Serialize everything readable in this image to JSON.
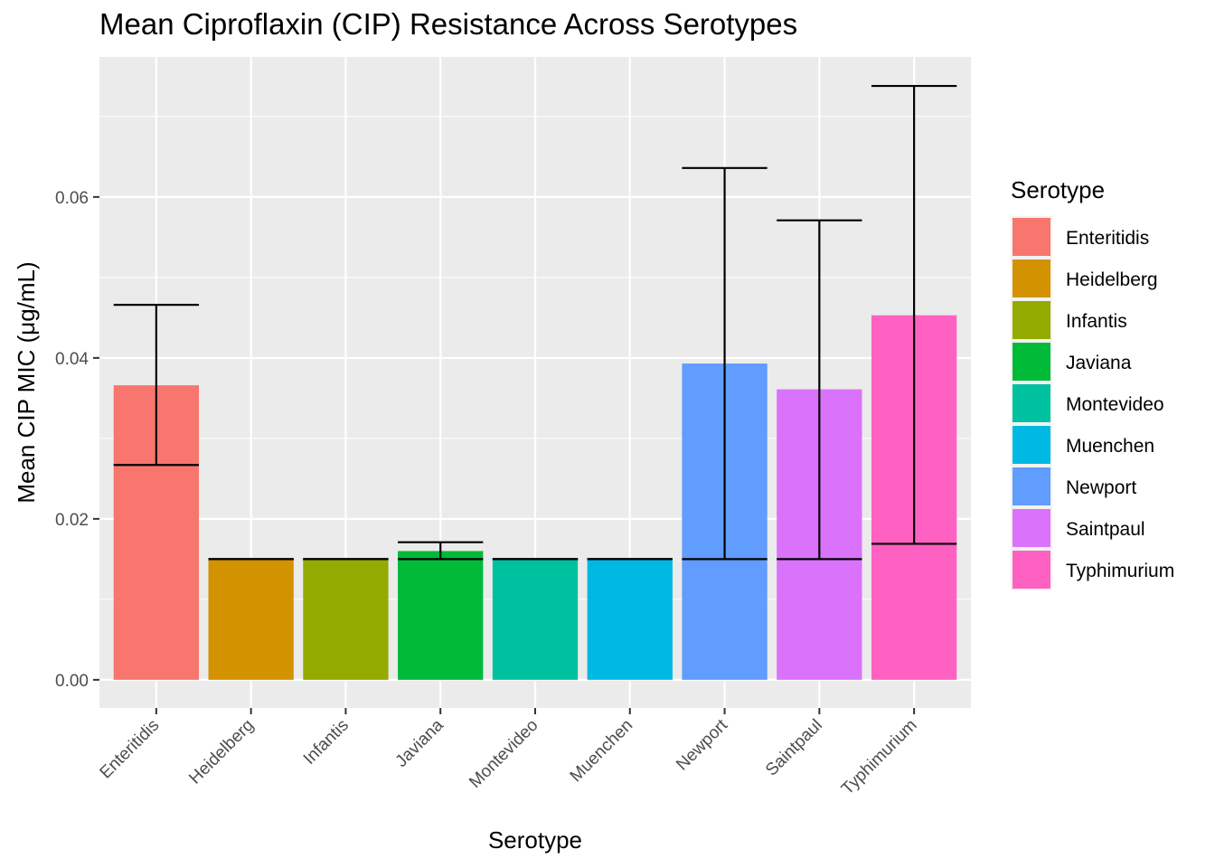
{
  "chart_data": {
    "type": "bar",
    "title": "Mean Ciproflaxin (CIP) Resistance Across Serotypes",
    "xlabel": "Serotype",
    "ylabel": "Mean CIP MIC (μg/mL)",
    "categories": [
      "Enteritidis",
      "Heidelberg",
      "Infantis",
      "Javiana",
      "Montevideo",
      "Muenchen",
      "Newport",
      "Saintpaul",
      "Typhimurium"
    ],
    "values": [
      0.0366,
      0.015,
      0.015,
      0.016,
      0.015,
      0.015,
      0.0393,
      0.0361,
      0.0453
    ],
    "error_low": [
      0.0267,
      0.015,
      0.015,
      0.015,
      0.015,
      0.015,
      0.015,
      0.015,
      0.0169
    ],
    "error_high": [
      0.0466,
      0.015,
      0.015,
      0.0171,
      0.015,
      0.015,
      0.0636,
      0.0571,
      0.0738
    ],
    "colors": [
      "#F8766D",
      "#D39200",
      "#93AA00",
      "#00BA38",
      "#00C19F",
      "#00B9E3",
      "#619CFF",
      "#DB72FB",
      "#FF61C3"
    ],
    "ylim": [
      -0.0035,
      0.0774
    ],
    "yticks": [
      0.0,
      0.02,
      0.04,
      0.06
    ],
    "ytick_labels": [
      "0.00",
      "0.02",
      "0.04",
      "0.06"
    ],
    "grid": true,
    "legend": {
      "title": "Serotype",
      "position": "right",
      "entries": [
        "Enteritidis",
        "Heidelberg",
        "Infantis",
        "Javiana",
        "Montevideo",
        "Muenchen",
        "Newport",
        "Saintpaul",
        "Typhimurium"
      ]
    }
  }
}
